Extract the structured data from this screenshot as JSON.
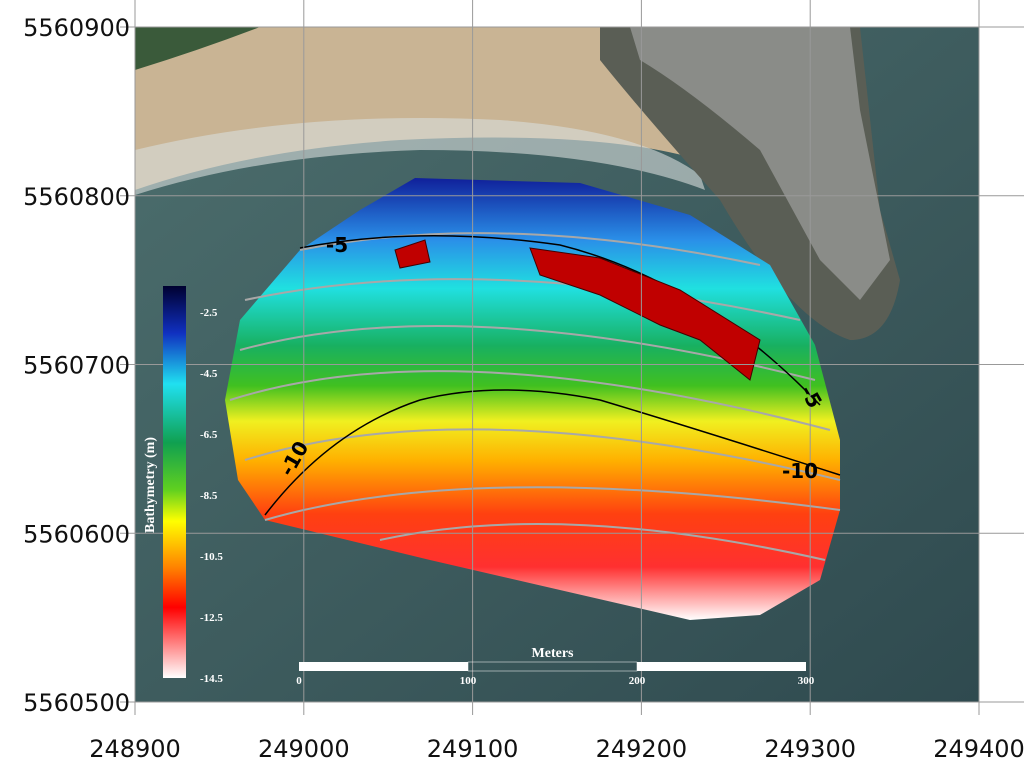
{
  "map": {
    "xlim": [
      248900,
      249400
    ],
    "ylim": [
      5560500,
      5560900
    ],
    "xticks": [
      248900,
      249000,
      249100,
      249200,
      249300,
      249400
    ],
    "yticks": [
      5560500,
      5560600,
      5560700,
      5560800,
      5560900
    ],
    "colorbar": {
      "title": "Bathymetry (m)",
      "ticks": [
        -2.5,
        -4.5,
        -6.5,
        -8.5,
        -10.5,
        -12.5,
        -14.5
      ]
    },
    "scalebar": {
      "title": "Meters",
      "ticks": [
        0,
        100,
        200,
        300
      ]
    },
    "contour_labels": [
      "-5",
      "-5",
      "-10",
      "-10"
    ]
  }
}
